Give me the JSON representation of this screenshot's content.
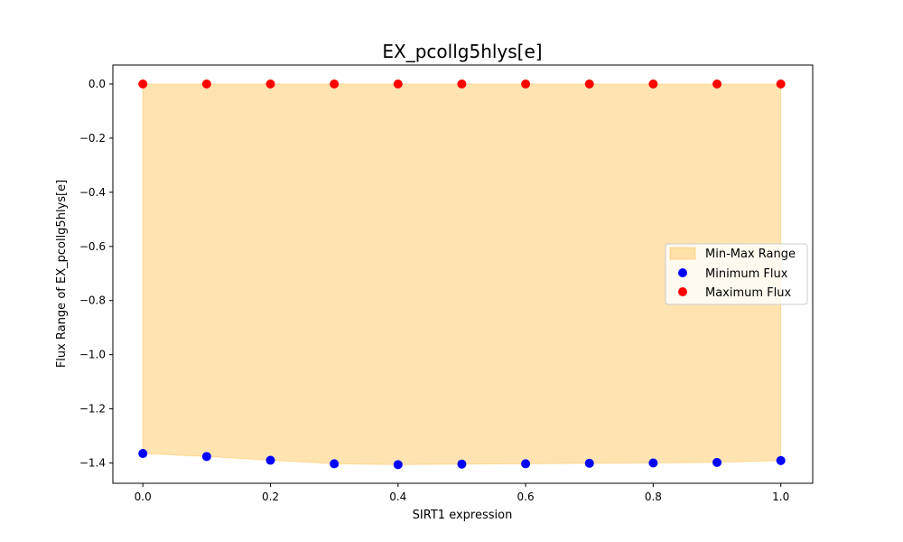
{
  "chart_data": {
    "type": "scatter",
    "title": "EX_pcollg5hlys[e]",
    "xlabel": "SIRT1 expression",
    "ylabel": "Flux Range of EX_pcollg5hlys[e]",
    "xlim": [
      -0.047,
      1.05
    ],
    "ylim": [
      -1.475,
      0.07
    ],
    "x_ticks": [
      0.0,
      0.2,
      0.4,
      0.6,
      0.8,
      1.0
    ],
    "x_tick_labels": [
      "0.0",
      "0.2",
      "0.4",
      "0.6",
      "0.8",
      "1.0"
    ],
    "y_ticks": [
      0.0,
      -0.2,
      -0.4,
      -0.6,
      -0.8,
      -1.0,
      -1.2,
      -1.4
    ],
    "y_tick_labels": [
      "0.0",
      "−0.2",
      "−0.4",
      "−0.6",
      "−0.8",
      "−1.0",
      "−1.2",
      "−1.4"
    ],
    "grid": false,
    "legend_position": "center-right",
    "x": [
      0.0,
      0.1,
      0.2,
      0.3,
      0.4,
      0.5,
      0.6,
      0.7,
      0.8,
      0.9,
      1.0
    ],
    "series": [
      {
        "name": "Min-Max Range",
        "kind": "fill_between",
        "color": "#FFA500",
        "opacity": 0.3
      },
      {
        "name": "Minimum Flux",
        "kind": "scatter",
        "color": "#0000FF",
        "values": [
          -1.365,
          -1.376,
          -1.39,
          -1.403,
          -1.406,
          -1.404,
          -1.403,
          -1.401,
          -1.4,
          -1.398,
          -1.391
        ]
      },
      {
        "name": "Maximum Flux",
        "kind": "scatter",
        "color": "#FF0000",
        "values": [
          0.0,
          0.0,
          0.0,
          0.0,
          0.0,
          0.0,
          0.0,
          0.0,
          0.0,
          0.0,
          0.0
        ]
      }
    ]
  }
}
